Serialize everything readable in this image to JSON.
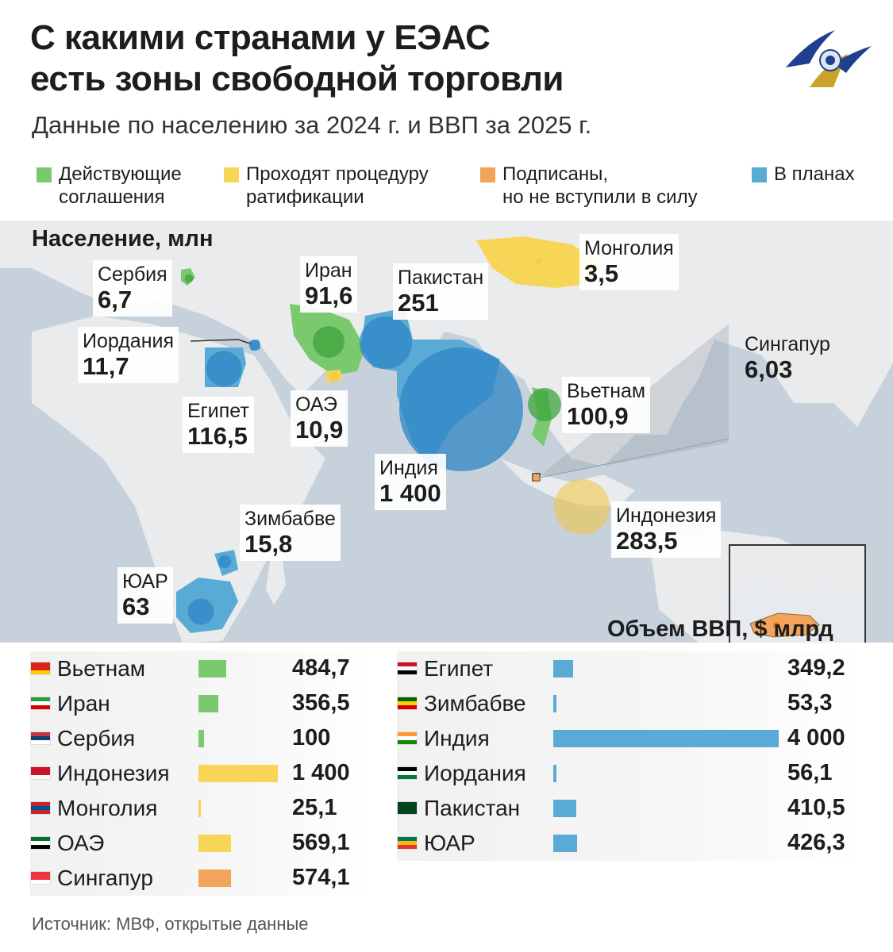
{
  "header": {
    "title_line1": "С какими странами у ЕЭАС",
    "title_line2": "есть зоны свободной торговли",
    "subtitle": "Данные по населению за 2024 г. и ВВП за 2025 г."
  },
  "colors": {
    "active": "#7bc96f",
    "ratification": "#f7d557",
    "signed": "#f2a55a",
    "planned": "#5aaad6",
    "planned_dark": "#2f86c4",
    "active_dark": "#3da33c"
  },
  "legend": [
    {
      "label": "Действующие\nсоглашения",
      "color_key": "active"
    },
    {
      "label": "Проходят процедуру\nратификации",
      "color_key": "ratification"
    },
    {
      "label": "Подписаны,\nно не вступили в силу",
      "color_key": "signed"
    },
    {
      "label": "В планах",
      "color_key": "planned"
    }
  ],
  "population_title": "Население, млн",
  "gdp_title": "Объем ВВП, $ млрд",
  "map_labels": [
    {
      "name": "Сербия",
      "value": "6,7"
    },
    {
      "name": "Иран",
      "value": "91,6"
    },
    {
      "name": "Пакистан",
      "value": "251"
    },
    {
      "name": "Монголия",
      "value": "3,5"
    },
    {
      "name": "Иордания",
      "value": "11,7"
    },
    {
      "name": "Египет",
      "value": "116,5"
    },
    {
      "name": "ОАЭ",
      "value": "10,9"
    },
    {
      "name": "Индия",
      "value": "1 400"
    },
    {
      "name": "Вьетнам",
      "value": "100,9"
    },
    {
      "name": "Сингапур",
      "value": "6,03"
    },
    {
      "name": "Индонезия",
      "value": "283,5"
    },
    {
      "name": "Зимбабве",
      "value": "15,8"
    },
    {
      "name": "ЮАР",
      "value": "63"
    }
  ],
  "chart_data": {
    "type": "bar",
    "title": "Объем ВВП, $ млрд",
    "series": [
      {
        "values": [
          {
            "country": "Вьетнам",
            "value": 484.7,
            "label": "484,7",
            "status": "active"
          },
          {
            "country": "Иран",
            "value": 356.5,
            "label": "356,5",
            "status": "active"
          },
          {
            "country": "Сербия",
            "value": 100,
            "label": "100",
            "status": "active"
          },
          {
            "country": "Индонезия",
            "value": 1400,
            "label": "1 400",
            "status": "ratification"
          },
          {
            "country": "Монголия",
            "value": 25.1,
            "label": "25,1",
            "status": "ratification"
          },
          {
            "country": "ОАЭ",
            "value": 569.1,
            "label": "569,1",
            "status": "ratification"
          },
          {
            "country": "Сингапур",
            "value": 574.1,
            "label": "574,1",
            "status": "signed"
          }
        ]
      },
      {
        "values": [
          {
            "country": "Египет",
            "value": 349.2,
            "label": "349,2",
            "status": "planned"
          },
          {
            "country": "Зимбабве",
            "value": 53.3,
            "label": "53,3",
            "status": "planned"
          },
          {
            "country": "Индия",
            "value": 4000,
            "label": "4 000",
            "status": "planned"
          },
          {
            "country": "Иордания",
            "value": 56.1,
            "label": "56,1",
            "status": "planned"
          },
          {
            "country": "Пакистан",
            "value": 410.5,
            "label": "410,5",
            "status": "planned"
          },
          {
            "country": "ЮАР",
            "value": 426.3,
            "label": "426,3",
            "status": "planned"
          }
        ]
      }
    ],
    "population": [
      {
        "country": "Сербия",
        "value": 6.7,
        "status": "active"
      },
      {
        "country": "Иран",
        "value": 91.6,
        "status": "active"
      },
      {
        "country": "Вьетнам",
        "value": 100.9,
        "status": "active"
      },
      {
        "country": "Монголия",
        "value": 3.5,
        "status": "ratification"
      },
      {
        "country": "ОАЭ",
        "value": 10.9,
        "status": "ratification"
      },
      {
        "country": "Индонезия",
        "value": 283.5,
        "status": "ratification"
      },
      {
        "country": "Сингапур",
        "value": 6.03,
        "status": "signed"
      },
      {
        "country": "Пакистан",
        "value": 251,
        "status": "planned"
      },
      {
        "country": "Иордания",
        "value": 11.7,
        "status": "planned"
      },
      {
        "country": "Египет",
        "value": 116.5,
        "status": "planned"
      },
      {
        "country": "Индия",
        "value": 1400,
        "status": "planned"
      },
      {
        "country": "Зимбабве",
        "value": 15.8,
        "status": "planned"
      },
      {
        "country": "ЮАР",
        "value": 63,
        "status": "planned"
      }
    ]
  },
  "source": "Источник: МВФ, открытые данные"
}
